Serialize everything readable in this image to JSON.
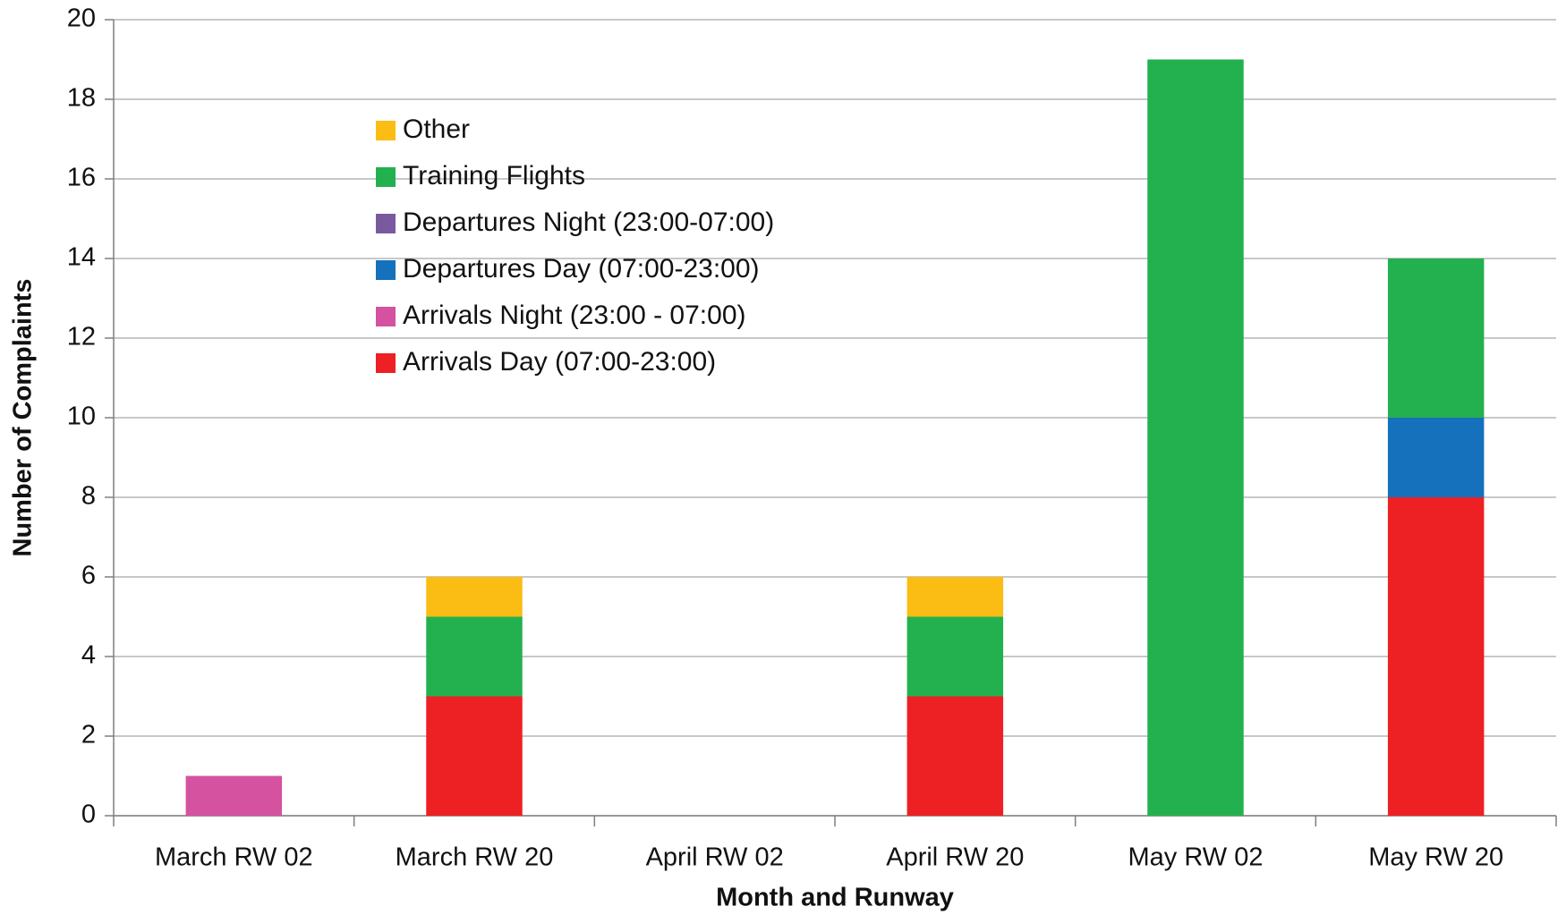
{
  "chart_data": {
    "type": "stacked_bar",
    "xlabel": "Month and Runway",
    "ylabel": "Number of Complaints",
    "categories": [
      "March RW 02",
      "March RW 20",
      "April RW 02",
      "April RW 20",
      "May RW 02",
      "May RW 20"
    ],
    "series": [
      {
        "name": "Arrivals Day (07:00-23:00)",
        "color": "#ed2024",
        "values": [
          0,
          3,
          0,
          3,
          0,
          8
        ]
      },
      {
        "name": "Arrivals Night (23:00 - 07:00)",
        "color": "#d4529f",
        "values": [
          1,
          0,
          0,
          0,
          0,
          0
        ]
      },
      {
        "name": "Departures Day  (07:00-23:00)",
        "color": "#1571bb",
        "values": [
          0,
          0,
          0,
          0,
          0,
          2
        ]
      },
      {
        "name": "Departures Night (23:00-07:00)",
        "color": "#7a5a9f",
        "values": [
          0,
          0,
          0,
          0,
          0,
          0
        ]
      },
      {
        "name": "Training Flights",
        "color": "#23b14f",
        "values": [
          0,
          2,
          0,
          2,
          19,
          4
        ]
      },
      {
        "name": "Other",
        "color": "#fbbd14",
        "values": [
          0,
          1,
          0,
          1,
          0,
          0
        ]
      }
    ],
    "ylim": [
      0,
      20
    ],
    "yticks": [
      0,
      2,
      4,
      6,
      8,
      10,
      12,
      14,
      16,
      18,
      20
    ],
    "grid": true,
    "legend": "upper left"
  }
}
